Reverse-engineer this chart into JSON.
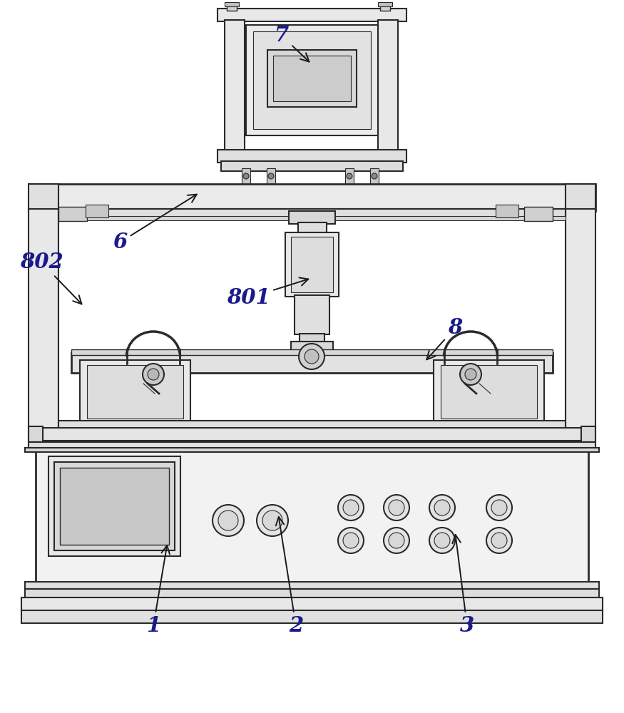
{
  "bg_color": "#ffffff",
  "line_color": "#2a2a2a",
  "label_color": "#1a1a8c",
  "lw_main": 1.5,
  "lw_thick": 2.0
}
